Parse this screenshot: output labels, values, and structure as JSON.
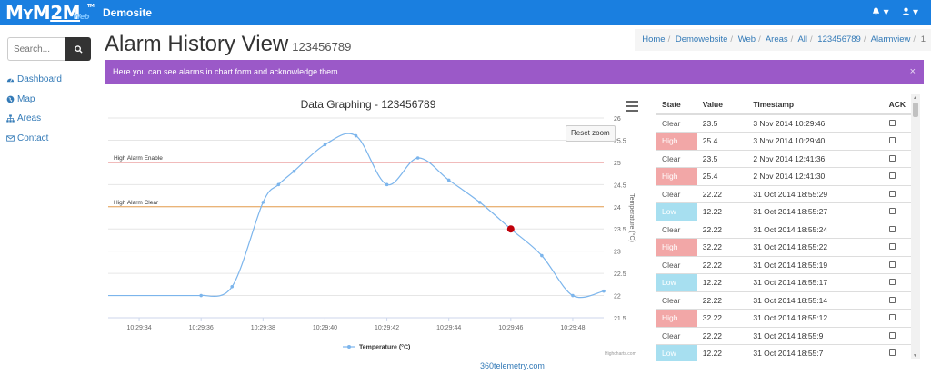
{
  "navbar": {
    "logo_text": "MYM2M",
    "logo_sub": "Web",
    "logo_tm": "TM",
    "site_name": "Demosite",
    "user_menu_icon": "user-icon",
    "alerts_menu_icon": "bell-icon",
    "caret": "▾"
  },
  "sidebar": {
    "search_placeholder": "Search...",
    "items": [
      {
        "label": "Dashboard",
        "icon": "dashboard-icon"
      },
      {
        "label": "Map",
        "icon": "globe-icon"
      },
      {
        "label": "Areas",
        "icon": "sitemap-icon"
      },
      {
        "label": "Contact",
        "icon": "envelope-icon"
      }
    ]
  },
  "header": {
    "title": "Alarm History View",
    "subtitle": "123456789"
  },
  "breadcrumb": [
    "Home",
    "Demowebsite",
    "Web",
    "Areas",
    "All",
    "123456789",
    "Alarmview",
    "1"
  ],
  "alert": {
    "text": "Here you can see alarms in chart form and acknowledge them",
    "close": "×"
  },
  "chart_data": {
    "type": "line",
    "title": "Data Graphing - 123456789",
    "ylabel": "Temperature (°C)",
    "xlabel": "",
    "ylim": [
      21.5,
      26
    ],
    "y_ticks": [
      "21.5",
      "22",
      "22.5",
      "23",
      "23.5",
      "24",
      "24.5",
      "25",
      "25.5",
      "26"
    ],
    "x_ticks": [
      "10:29:34",
      "10:29:36",
      "10:29:38",
      "10:29:40",
      "10:29:42",
      "10:29:44",
      "10:29:46",
      "10:29:48"
    ],
    "x_range": [
      "10:29:33",
      "10:29:49"
    ],
    "series": [
      {
        "name": "Temperature (°C)",
        "color": "#7cb5ec",
        "x": [
          "10:29:36",
          "10:29:37",
          "10:29:38",
          "10:29:38.5",
          "10:29:39",
          "10:29:40",
          "10:29:41",
          "10:29:42",
          "10:29:43",
          "10:29:44",
          "10:29:45",
          "10:29:46",
          "10:29:47",
          "10:29:48",
          "10:29:49"
        ],
        "y": [
          22.0,
          22.2,
          24.1,
          24.5,
          24.8,
          25.4,
          25.6,
          24.5,
          25.1,
          24.6,
          24.1,
          23.5,
          22.9,
          22.0,
          22.1
        ]
      }
    ],
    "plot_lines": [
      {
        "label": "High Alarm Enable",
        "value": 25,
        "color": "#e05050"
      },
      {
        "label": "High Alarm Clear",
        "value": 24,
        "color": "#e8a050"
      }
    ],
    "highlighted_point": {
      "x": "10:29:46",
      "y": 23.5,
      "color": "#c0000a"
    },
    "legend_position": "bottom-center",
    "grid": true,
    "reset_zoom_label": "Reset zoom",
    "credits": "Highcharts.com"
  },
  "table": {
    "headers": [
      "State",
      "Value",
      "Timestamp",
      "ACK"
    ],
    "rows": [
      {
        "state": "Clear",
        "value": "23.5",
        "timestamp": "3 Nov 2014 10:29:46"
      },
      {
        "state": "High",
        "value": "25.4",
        "timestamp": "3 Nov 2014 10:29:40"
      },
      {
        "state": "Clear",
        "value": "23.5",
        "timestamp": "2 Nov 2014 12:41:36"
      },
      {
        "state": "High",
        "value": "25.4",
        "timestamp": "2 Nov 2014 12:41:30"
      },
      {
        "state": "Clear",
        "value": "22.22",
        "timestamp": "31 Oct 2014 18:55:29"
      },
      {
        "state": "Low",
        "value": "12.22",
        "timestamp": "31 Oct 2014 18:55:27"
      },
      {
        "state": "Clear",
        "value": "22.22",
        "timestamp": "31 Oct 2014 18:55:24"
      },
      {
        "state": "High",
        "value": "32.22",
        "timestamp": "31 Oct 2014 18:55:22"
      },
      {
        "state": "Clear",
        "value": "22.22",
        "timestamp": "31 Oct 2014 18:55:19"
      },
      {
        "state": "Low",
        "value": "12.22",
        "timestamp": "31 Oct 2014 18:55:17"
      },
      {
        "state": "Clear",
        "value": "22.22",
        "timestamp": "31 Oct 2014 18:55:14"
      },
      {
        "state": "High",
        "value": "32.22",
        "timestamp": "31 Oct 2014 18:55:12"
      },
      {
        "state": "Clear",
        "value": "22.22",
        "timestamp": "31 Oct 2014 18:55:9"
      },
      {
        "state": "Low",
        "value": "12.22",
        "timestamp": "31 Oct 2014 18:55:7"
      }
    ]
  },
  "footer": {
    "link": "360telemetry.com"
  },
  "colors": {
    "nav": "#1a7fe0",
    "alert": "#9b59c8",
    "high": "#f2a7a7",
    "low": "#a7dff0",
    "link": "#337ab7"
  }
}
